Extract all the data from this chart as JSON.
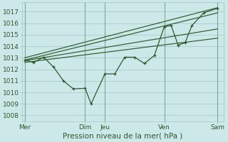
{
  "xlabel": "Pression niveau de la mer( hPa )",
  "bg_color": "#cce8e8",
  "grid_color": "#aacccc",
  "line_color": "#2d5a2d",
  "yticks": [
    1008,
    1009,
    1010,
    1011,
    1012,
    1013,
    1014,
    1015,
    1016,
    1017
  ],
  "ylim": [
    1007.5,
    1017.8
  ],
  "xlim": [
    0,
    10.2
  ],
  "xtick_labels": [
    "Mer",
    "Dim",
    "Jeu",
    "Ven",
    "Sam"
  ],
  "xtick_positions": [
    0.15,
    3.2,
    4.2,
    7.2,
    9.9
  ],
  "vlines": [
    0.15,
    3.2,
    4.2,
    7.2,
    9.9
  ],
  "main_x": [
    0.15,
    0.6,
    1.1,
    1.6,
    2.1,
    2.6,
    3.2,
    3.5,
    4.2,
    4.7,
    5.2,
    5.7,
    6.2,
    6.7,
    7.2,
    7.55,
    7.9,
    8.25,
    8.6,
    9.2,
    9.9
  ],
  "main_y": [
    1012.8,
    1012.6,
    1013.05,
    1012.2,
    1011.0,
    1010.3,
    1010.35,
    1009.0,
    1011.6,
    1011.6,
    1013.05,
    1013.05,
    1012.5,
    1013.2,
    1015.7,
    1015.8,
    1014.1,
    1014.3,
    1015.8,
    1016.9,
    1017.3
  ],
  "trend1_x": [
    0.15,
    9.9
  ],
  "trend1_y": [
    1013.0,
    1017.35
  ],
  "trend2_x": [
    0.15,
    9.9
  ],
  "trend2_y": [
    1012.8,
    1016.9
  ],
  "trend3_x": [
    0.15,
    9.9
  ],
  "trend3_y": [
    1012.75,
    1015.5
  ],
  "trend4_x": [
    0.15,
    9.9
  ],
  "trend4_y": [
    1012.6,
    1014.7
  ],
  "figsize": [
    3.2,
    2.0
  ],
  "dpi": 100
}
